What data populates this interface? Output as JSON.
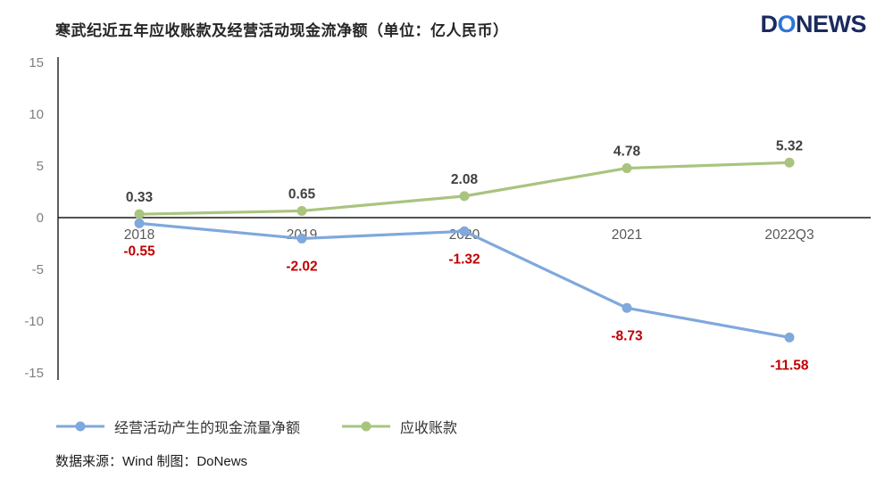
{
  "page": {
    "title": "寒武纪近五年应收账款及经营活动现金流净额（单位：亿人民币）",
    "logo": {
      "part1": "D",
      "part2": "O",
      "part3": "NEWS"
    },
    "source_note": "数据来源：Wind   制图：DoNews"
  },
  "colors": {
    "logo_navy": "#1B2A5E",
    "logo_blue": "#2E75D5",
    "negative_label_red": "#C00000",
    "positive_label_gray": "#404040",
    "axis_black": "#1A1A1A"
  },
  "chart_data": {
    "type": "line",
    "title": "寒武纪近五年应收账款及经营活动现金流净额",
    "unit": "亿人民币",
    "categories": [
      "2018",
      "2019",
      "2020",
      "2021",
      "2022Q3"
    ],
    "series": [
      {
        "key": "operating-cashflow",
        "name": "经营活动产生的现金流量净额",
        "values": [
          -0.55,
          -2.02,
          -1.32,
          -8.73,
          -11.58
        ],
        "color": "#7FA8DC",
        "label_color": "#C00000",
        "label_position": "below"
      },
      {
        "key": "accounts-receivable",
        "name": "应收账款",
        "values": [
          0.33,
          0.65,
          2.08,
          4.78,
          5.32
        ],
        "color": "#A9C47F",
        "label_color": "#404040",
        "label_position": "above"
      }
    ],
    "ylim": [
      -15,
      15
    ],
    "yticks": [
      15,
      10,
      5,
      0,
      -5,
      -10,
      -15
    ],
    "grid": false,
    "legend_position": "bottom",
    "tick_label_color": "#7F7F7F",
    "x_label_color": "#595959",
    "axis_color": "#1A1A1A"
  }
}
